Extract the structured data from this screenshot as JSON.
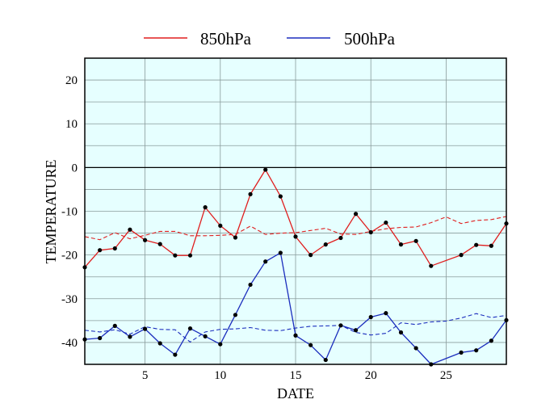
{
  "chart_data": {
    "type": "line",
    "xlabel": "DATE",
    "ylabel": "TEMPERATURE",
    "xlim": [
      1,
      29
    ],
    "ylim": [
      -45,
      25
    ],
    "xticks": [
      5,
      10,
      15,
      20,
      25
    ],
    "yticks": [
      20,
      10,
      0,
      -10,
      -20,
      -30,
      -40
    ],
    "grid": true,
    "legend_position": "top",
    "zero_line": 0,
    "colors": {
      "plot_background": "#e6ffff",
      "grid": "#8a9b9b",
      "zero_line": "#000000"
    },
    "series": [
      {
        "name": "850hPa",
        "color": "#e01e1e",
        "x": [
          1,
          2,
          3,
          4,
          5,
          6,
          7,
          8,
          9,
          10,
          11,
          12,
          13,
          14,
          15,
          16,
          17,
          18,
          19,
          20,
          21,
          22,
          23,
          24,
          26,
          27,
          28,
          29
        ],
        "values": [
          -22.8,
          -18.9,
          -18.5,
          -14.2,
          -16.6,
          -17.5,
          -20.1,
          -20.1,
          -9.1,
          -13.3,
          -16.0,
          -6.1,
          -0.5,
          -6.6,
          -15.8,
          -20.0,
          -17.6,
          -16.1,
          -10.6,
          -14.8,
          -12.6,
          -17.6,
          -16.8,
          -22.5,
          -20.0,
          -17.7,
          -17.9,
          -12.8
        ]
      },
      {
        "name": "500hPa",
        "color": "#1b2dbd",
        "x": [
          1,
          2,
          3,
          4,
          5,
          6,
          7,
          8,
          9,
          10,
          11,
          12,
          13,
          14,
          15,
          16,
          17,
          18,
          19,
          20,
          21,
          22,
          23,
          24,
          26,
          27,
          28,
          29
        ],
        "values": [
          -39.3,
          -39.0,
          -36.2,
          -38.7,
          -36.9,
          -40.2,
          -42.8,
          -36.8,
          -38.6,
          -40.4,
          -33.7,
          -26.8,
          -21.5,
          -19.5,
          -38.4,
          -40.6,
          -44.0,
          -36.1,
          -37.2,
          -34.2,
          -33.3,
          -37.7,
          -41.3,
          -45.0,
          -42.3,
          -41.8,
          -39.6,
          -34.9
        ]
      },
      {
        "name": "850hPa",
        "style": "dashed",
        "color": "#e01e1e",
        "x": [
          1,
          2,
          3,
          4,
          5,
          6,
          7,
          8,
          9,
          10,
          11,
          12,
          13,
          14,
          15,
          16,
          17,
          18,
          19,
          20,
          21,
          22,
          23,
          24,
          25,
          26,
          27,
          28,
          29
        ],
        "values": [
          -15.8,
          -16.5,
          -14.9,
          -16.3,
          -15.5,
          -14.6,
          -14.6,
          -15.6,
          -15.6,
          -15.5,
          -15.3,
          -13.4,
          -15.3,
          -15.0,
          -14.9,
          -14.4,
          -13.9,
          -15.2,
          -15.3,
          -14.6,
          -14.0,
          -13.7,
          -13.6,
          -12.6,
          -11.3,
          -12.8,
          -12.1,
          -11.9,
          -11.2
        ]
      },
      {
        "name": "500hPa",
        "style": "dashed",
        "color": "#1b2dbd",
        "x": [
          1,
          2,
          3,
          4,
          5,
          6,
          7,
          8,
          9,
          10,
          11,
          12,
          13,
          14,
          15,
          16,
          17,
          18,
          19,
          20,
          21,
          22,
          23,
          24,
          25,
          26,
          27,
          28,
          29
        ],
        "values": [
          -37.2,
          -37.6,
          -37.1,
          -38.1,
          -36.4,
          -37.0,
          -37.1,
          -39.9,
          -37.6,
          -37.0,
          -36.9,
          -36.6,
          -37.2,
          -37.3,
          -36.7,
          -36.3,
          -36.2,
          -36.1,
          -37.7,
          -38.3,
          -37.9,
          -35.5,
          -35.9,
          -35.3,
          -35.1,
          -34.4,
          -33.4,
          -34.3,
          -33.8
        ]
      }
    ]
  }
}
